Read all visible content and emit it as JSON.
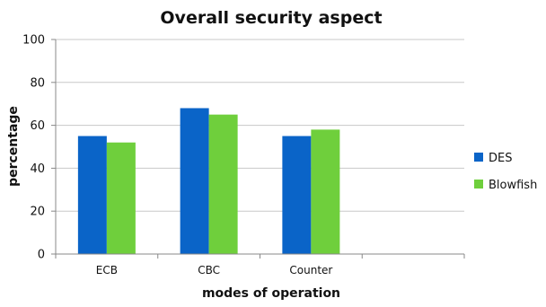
{
  "chart_data": {
    "type": "bar",
    "title": "Overall security aspect",
    "xlabel": "modes of operation",
    "ylabel": "percentage",
    "categories": [
      "ECB",
      "CBC",
      "Counter",
      ""
    ],
    "series": [
      {
        "name": "DES",
        "values": [
          55,
          68,
          55,
          null
        ],
        "color": "#0a64c8"
      },
      {
        "name": "Blowfish",
        "values": [
          52,
          65,
          58,
          null
        ],
        "color": "#6fcf3c"
      }
    ],
    "ylim": [
      0,
      100
    ],
    "yticks": [
      0,
      20,
      40,
      60,
      80,
      100
    ],
    "grid": true,
    "legend": "right"
  }
}
